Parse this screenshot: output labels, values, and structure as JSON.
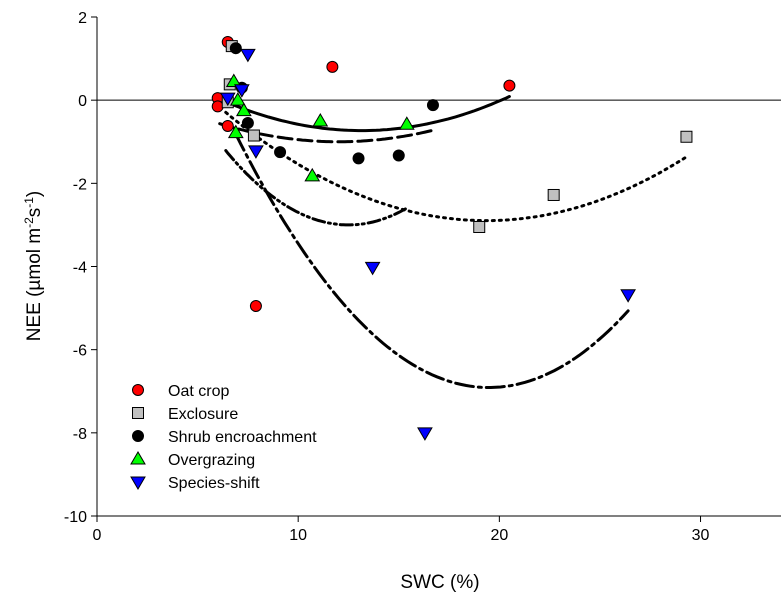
{
  "chart_data": {
    "type": "scatter",
    "title": "",
    "xlabel": "SWC (%)",
    "ylabel_parts": [
      "NEE (µmol m",
      "-2",
      "s",
      "-1",
      ")"
    ],
    "xlim": [
      0,
      34
    ],
    "ylim": [
      -10,
      2
    ],
    "xticks": [
      "0",
      "10",
      "20",
      "30"
    ],
    "yticks": [
      "-10",
      "-8",
      "-6",
      "-4",
      "-2",
      "0",
      "2"
    ],
    "reference_line_y": 0,
    "grid": false,
    "legend_position": "bottom-left",
    "series": [
      {
        "name": "Oat crop",
        "marker": "circle",
        "color": "#ff0000",
        "line_style": "solid",
        "x": [
          6.5,
          6.0,
          6.0,
          6.5,
          11.7,
          20.5,
          7.9
        ],
        "y": [
          1.4,
          0.05,
          -0.15,
          -0.62,
          0.8,
          0.35,
          -4.95
        ],
        "fit_x": [
          6.2,
          20.5
        ],
        "fit_coeffs": [
          1.9,
          -0.4,
          0.0152
        ]
      },
      {
        "name": "Exclosure",
        "marker": "square",
        "color": "#c0c0c0",
        "line_style": "dotted",
        "x": [
          6.7,
          6.6,
          6.5,
          7.8,
          19.0,
          22.7,
          29.3
        ],
        "y": [
          1.3,
          0.38,
          -0.05,
          -0.85,
          -3.05,
          -2.28,
          -0.88
        ],
        "fit_x": [
          6.4,
          29.3
        ],
        "fit_coeffs": [
          2.91,
          -0.6,
          0.0155
        ]
      },
      {
        "name": "Shrub encroachment",
        "marker": "circle",
        "color": "#000000",
        "line_style": "dashed",
        "x": [
          6.9,
          7.2,
          7.5,
          9.1,
          13.0,
          15.0,
          16.7
        ],
        "y": [
          1.25,
          0.3,
          -0.55,
          -1.25,
          -1.4,
          -1.33,
          -0.12
        ],
        "fit_x": [
          6.1,
          16.7
        ],
        "fit_coeffs": [
          0.8,
          -0.3,
          0.0125
        ]
      },
      {
        "name": "Overgrazing",
        "marker": "triangle-up",
        "color": "#00ff00",
        "line_style": "dash-dot-dot",
        "x": [
          6.8,
          7.0,
          7.3,
          6.9,
          10.7,
          11.1,
          15.4
        ],
        "y": [
          0.45,
          0.0,
          -0.25,
          -0.78,
          -1.82,
          -0.5,
          -0.58
        ],
        "fit_x": [
          6.4,
          15.4
        ],
        "fit_coeffs": [
          4.5,
          -1.2,
          0.048
        ]
      },
      {
        "name": "Species-shift",
        "marker": "triangle-down",
        "color": "#0000ff",
        "line_style": "dash-dot",
        "x": [
          6.5,
          7.2,
          7.5,
          7.9,
          13.7,
          16.3,
          26.4
        ],
        "y": [
          0.05,
          0.25,
          1.1,
          -1.22,
          -4.02,
          -8.0,
          -4.68
        ],
        "fit_x": [
          6.9,
          26.4
        ],
        "fit_coeffs": [
          7.7,
          -1.5,
          0.0385
        ]
      }
    ]
  }
}
